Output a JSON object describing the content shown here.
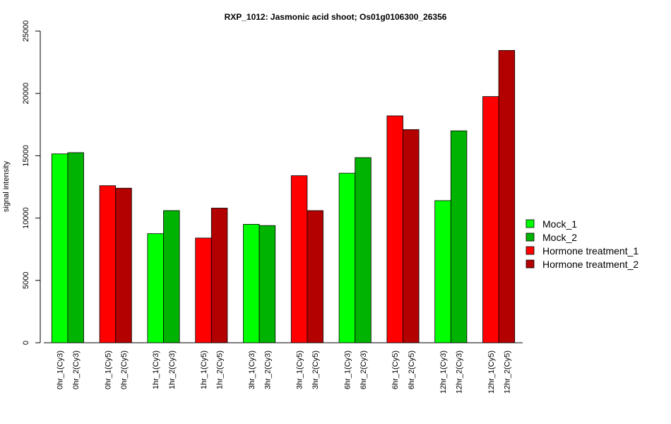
{
  "chart_data": {
    "type": "bar",
    "title": "RXP_1012: Jasmonic acid shoot; Os01g0106300_26356",
    "ylabel": "signal intensity",
    "xlabel": "",
    "ylim": [
      0,
      25000
    ],
    "yticks": [
      0,
      5000,
      10000,
      15000,
      20000,
      25000
    ],
    "grid": false,
    "legend_position": "right",
    "groups": [
      {
        "labels": [
          "0hr_1(Cy3)",
          "0hr_2(Cy3)"
        ],
        "values": [
          15150,
          15250
        ],
        "series": [
          "Mock_1",
          "Mock_2"
        ]
      },
      {
        "labels": [
          "0hr_1(Cy5)",
          "0hr_2(Cy5)"
        ],
        "values": [
          12600,
          12400
        ],
        "series": [
          "Hormone treatment_1",
          "Hormone treatment_2"
        ]
      },
      {
        "labels": [
          "1hr_1(Cy3)",
          "1hr_2(Cy3)"
        ],
        "values": [
          8750,
          10600
        ],
        "series": [
          "Mock_1",
          "Mock_2"
        ]
      },
      {
        "labels": [
          "1hr_1(Cy5)",
          "1hr_2(Cy5)"
        ],
        "values": [
          8400,
          10800
        ],
        "series": [
          "Hormone treatment_1",
          "Hormone treatment_2"
        ]
      },
      {
        "labels": [
          "3hr_1(Cy3)",
          "3hr_2(Cy3)"
        ],
        "values": [
          9500,
          9400
        ],
        "series": [
          "Mock_1",
          "Mock_2"
        ]
      },
      {
        "labels": [
          "3hr_1(Cy5)",
          "3hr_2(Cy5)"
        ],
        "values": [
          13400,
          10600
        ],
        "series": [
          "Hormone treatment_1",
          "Hormone treatment_2"
        ]
      },
      {
        "labels": [
          "6hr_1(Cy3)",
          "6hr_2(Cy3)"
        ],
        "values": [
          13600,
          14850
        ],
        "series": [
          "Mock_1",
          "Mock_2"
        ]
      },
      {
        "labels": [
          "6hr_1(Cy5)",
          "6hr_2(Cy5)"
        ],
        "values": [
          18200,
          17100
        ],
        "series": [
          "Hormone treatment_1",
          "Hormone treatment_2"
        ]
      },
      {
        "labels": [
          "12hr_1(Cy3)",
          "12hr_2(Cy3)"
        ],
        "values": [
          11400,
          17000
        ],
        "series": [
          "Mock_1",
          "Mock_2"
        ]
      },
      {
        "labels": [
          "12hr_1(Cy5)",
          "12hr_2(Cy5)"
        ],
        "values": [
          19750,
          23450
        ],
        "series": [
          "Hormone treatment_1",
          "Hormone treatment_2"
        ]
      }
    ],
    "legend": [
      {
        "name": "Mock_1",
        "color": "#00ff00"
      },
      {
        "name": "Mock_2",
        "color": "#00b300"
      },
      {
        "name": "Hormone treatment_1",
        "color": "#ff0000"
      },
      {
        "name": "Hormone treatment_2",
        "color": "#b30000"
      }
    ]
  }
}
